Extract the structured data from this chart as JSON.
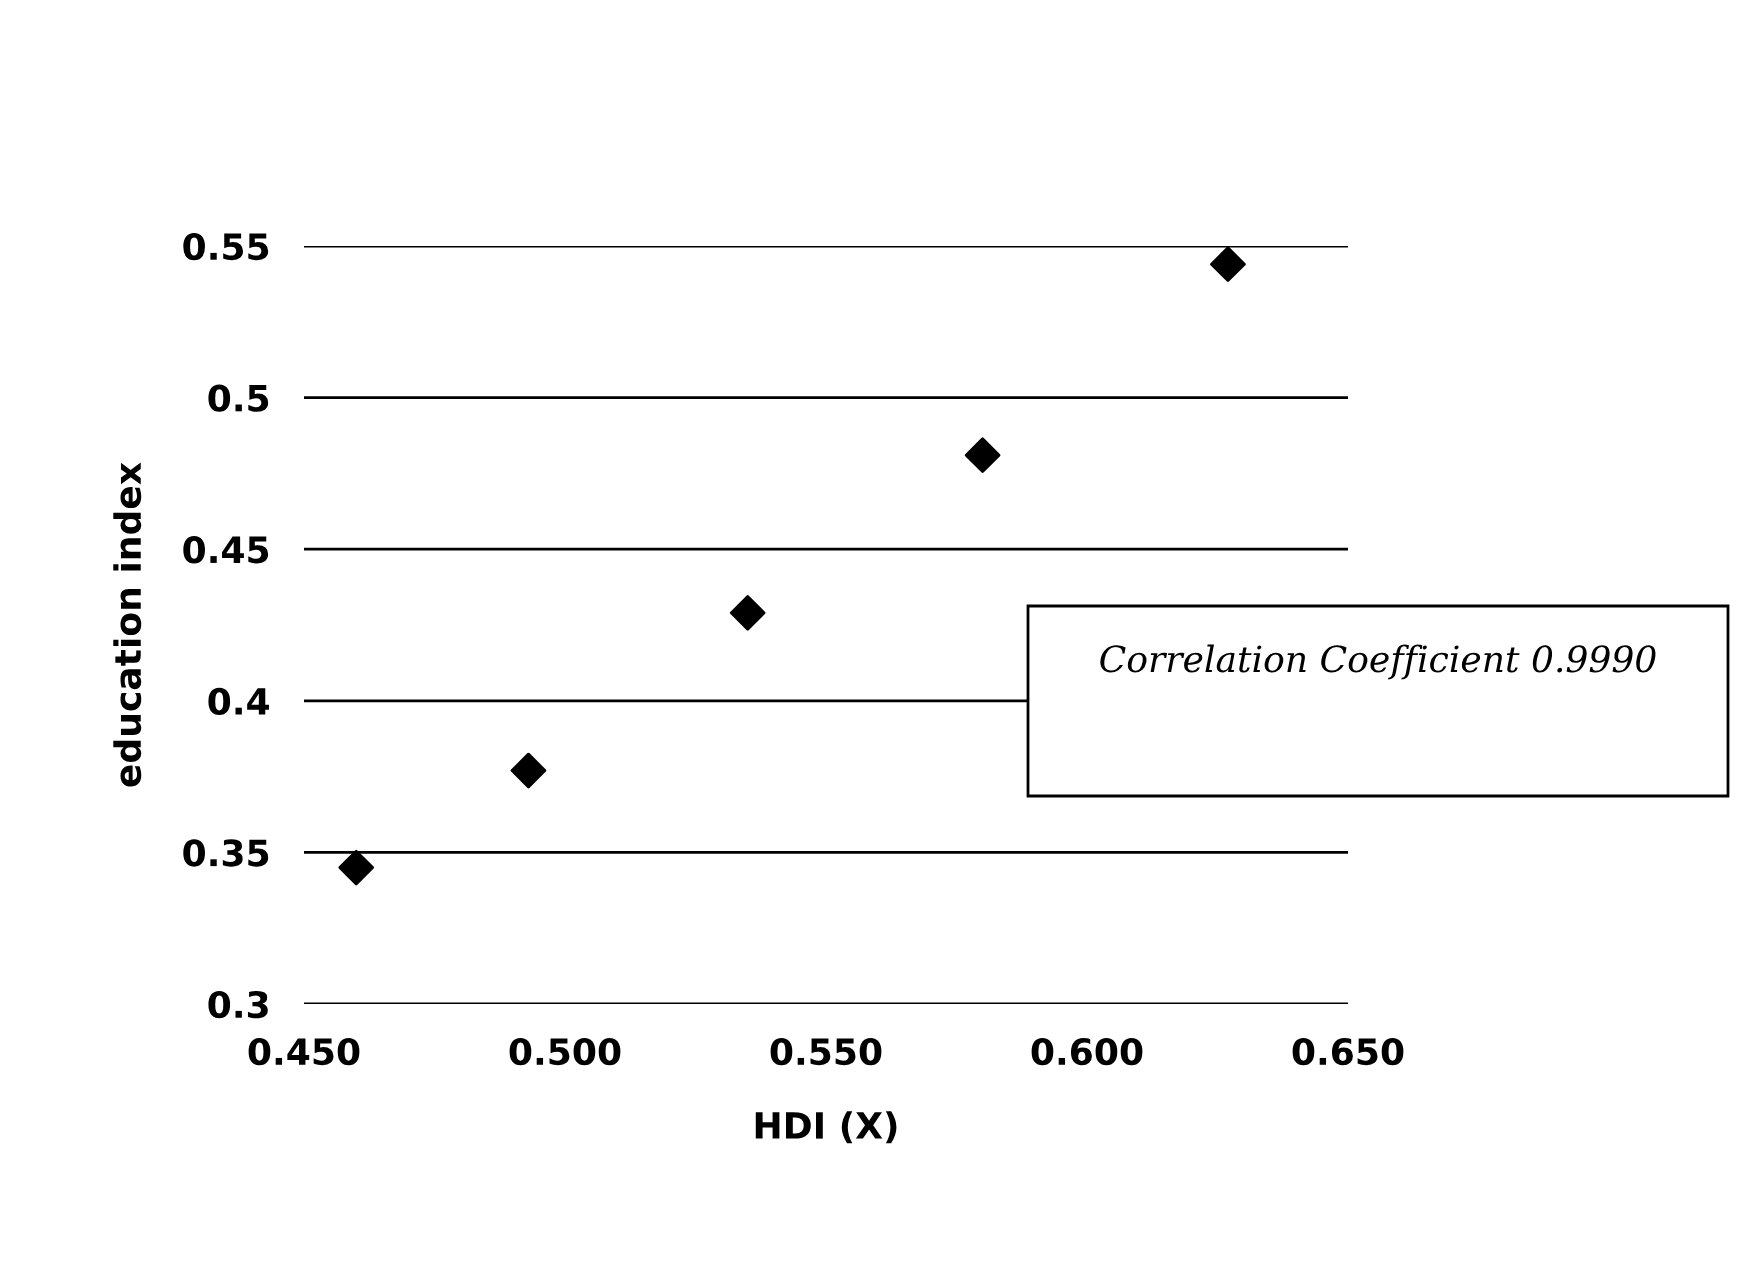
{
  "chart_data": {
    "type": "scatter",
    "xlabel": "HDI (X)",
    "ylabel": "education index",
    "x": [
      0.46,
      0.493,
      0.535,
      0.58,
      0.627
    ],
    "series": [
      {
        "color": "#000000",
        "values": [
          0.345,
          0.377,
          0.429,
          0.481,
          0.544
        ]
      }
    ],
    "marker": "diamond",
    "xlim": [
      0.45,
      0.65
    ],
    "ylim": [
      0.3,
      0.55
    ],
    "xticks": [
      {
        "value": 0.45,
        "label": "0.450"
      },
      {
        "value": 0.5,
        "label": "0.500"
      },
      {
        "value": 0.55,
        "label": "0.550"
      },
      {
        "value": 0.6,
        "label": "0.600"
      },
      {
        "value": 0.65,
        "label": "0.650"
      }
    ],
    "yticks": [
      0.3,
      0.35,
      0.4,
      0.45,
      0.5,
      0.55
    ],
    "grid": "y",
    "annotations": [
      "Correlation Coefficient 0.9990"
    ]
  }
}
